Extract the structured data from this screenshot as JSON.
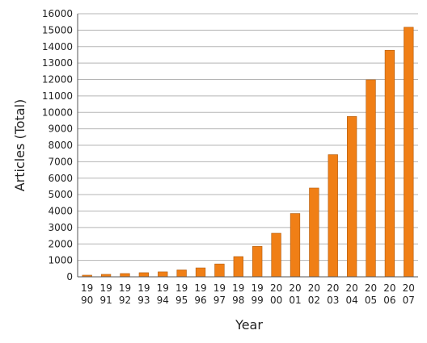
{
  "chart_data": {
    "type": "bar",
    "xlabel": "Year",
    "ylabel": "Articles (Total)",
    "ylim": [
      0,
      16000
    ],
    "ytick_step": 1000,
    "grid": true,
    "bar_color": "#f07f16",
    "categories": [
      "1990",
      "1991",
      "1992",
      "1993",
      "1994",
      "1995",
      "1996",
      "1997",
      "1998",
      "1999",
      "2000",
      "2001",
      "2002",
      "2003",
      "2004",
      "2005",
      "2006",
      "2007"
    ],
    "category_label_lines": [
      [
        "19",
        "90"
      ],
      [
        "19",
        "91"
      ],
      [
        "19",
        "92"
      ],
      [
        "19",
        "93"
      ],
      [
        "19",
        "94"
      ],
      [
        "19",
        "95"
      ],
      [
        "19",
        "96"
      ],
      [
        "19",
        "97"
      ],
      [
        "19",
        "98"
      ],
      [
        "19",
        "99"
      ],
      [
        "20",
        "00"
      ],
      [
        "20",
        "01"
      ],
      [
        "20",
        "02"
      ],
      [
        "20",
        "03"
      ],
      [
        "20",
        "04"
      ],
      [
        "20",
        "05"
      ],
      [
        "20",
        "06"
      ],
      [
        "20",
        "07"
      ]
    ],
    "series": [
      {
        "values": [
          100,
          150,
          200,
          250,
          300,
          420,
          540,
          780,
          1230,
          1850,
          2650,
          3850,
          5400,
          7430,
          9750,
          11980,
          13780,
          15180
        ]
      }
    ]
  }
}
